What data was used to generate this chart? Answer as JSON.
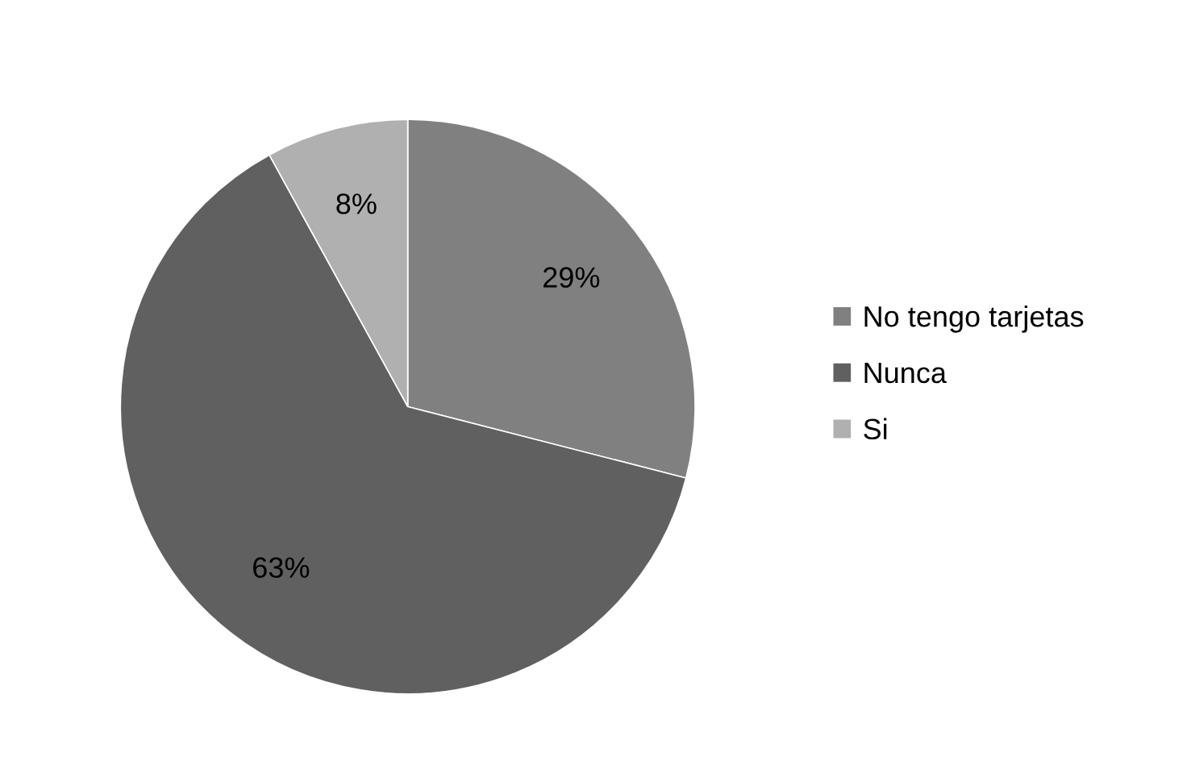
{
  "chart_data": {
    "type": "pie",
    "categories": [
      "No tengo tarjetas",
      "Nunca",
      "Si"
    ],
    "values": [
      29,
      63,
      8
    ],
    "value_labels": [
      "29%",
      "63%",
      "8%"
    ],
    "colors": [
      "#808080",
      "#606060",
      "#b0b0b0"
    ],
    "legend": "right"
  }
}
